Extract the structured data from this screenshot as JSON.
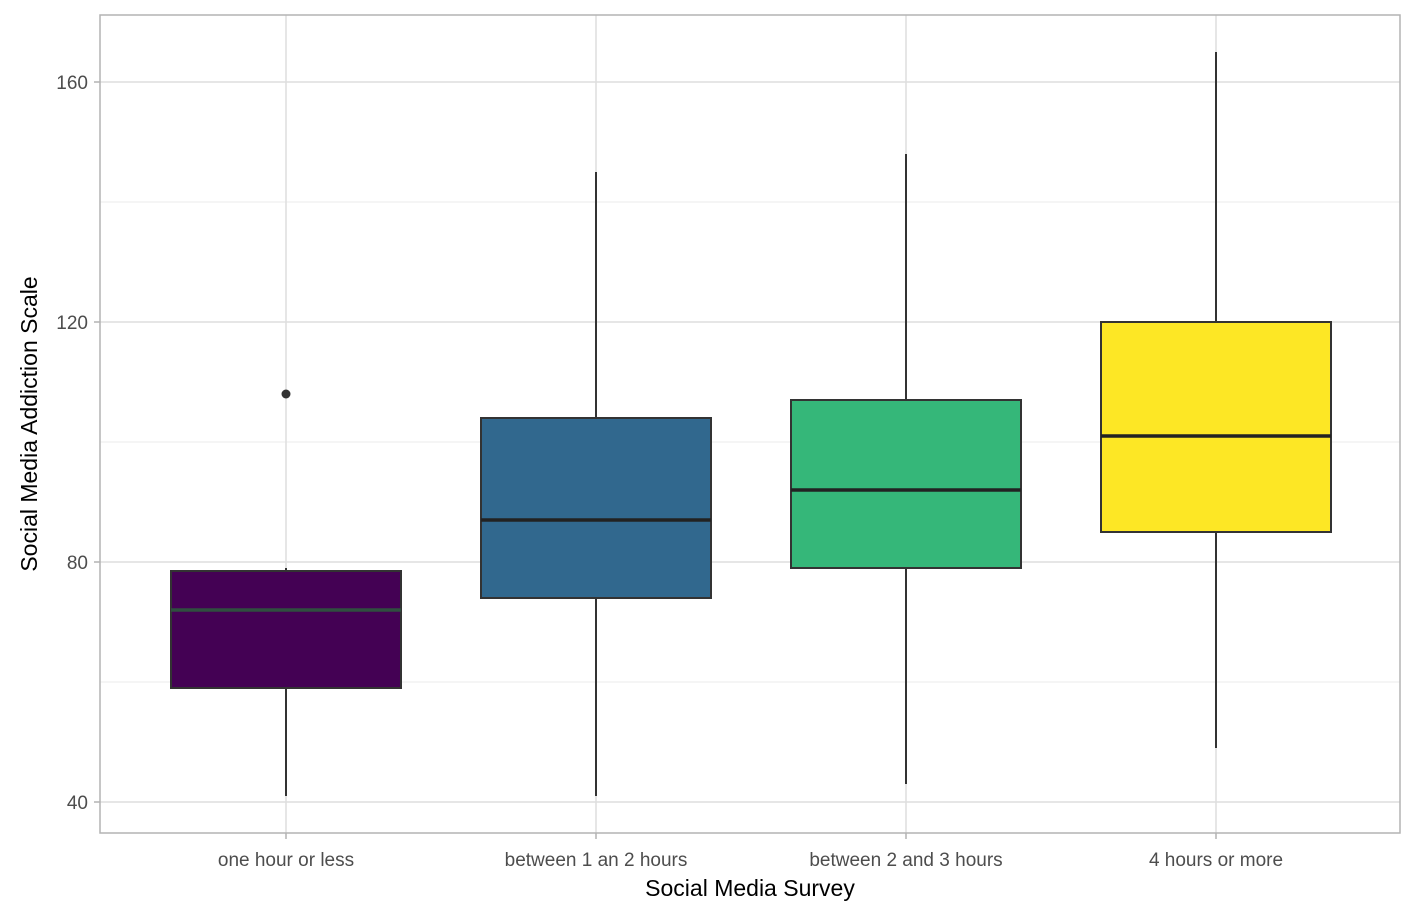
{
  "chart_data": {
    "type": "box",
    "title": "",
    "xlabel": "Social Media Survey",
    "ylabel": "Social Media Addiction Scale",
    "ylim": [
      35,
      172
    ],
    "yticks": [
      40,
      80,
      120,
      160
    ],
    "grid": true,
    "legend": null,
    "categories": [
      "one hour or less",
      "between 1 an 2 hours",
      "between 2 and 3 hours",
      "4 hours or more"
    ],
    "series": [
      {
        "name": "one hour or less",
        "color": "#440154",
        "median_color": "#2f4f3f",
        "whisker_low": 41,
        "q1": 59,
        "median": 72,
        "q3": 78.5,
        "whisker_high": 79,
        "outliers": [
          108
        ]
      },
      {
        "name": "between 1 an 2 hours",
        "color": "#31688E",
        "median_color": "#222222",
        "whisker_low": 41,
        "q1": 74,
        "median": 87,
        "q3": 104,
        "whisker_high": 145,
        "outliers": []
      },
      {
        "name": "between 2 and 3 hours",
        "color": "#35B779",
        "median_color": "#222222",
        "whisker_low": 43,
        "q1": 79,
        "median": 92,
        "q3": 107,
        "whisker_high": 148,
        "outliers": []
      },
      {
        "name": "4 hours or more",
        "color": "#FDE725",
        "median_color": "#222222",
        "whisker_low": 49,
        "q1": 85,
        "median": 101,
        "q3": 120,
        "whisker_high": 165,
        "outliers": []
      }
    ]
  },
  "axes": {
    "x_title": "Social Media Survey",
    "y_title": "Social Media Addiction Scale",
    "y_tick_labels": [
      "40",
      "80",
      "120",
      "160"
    ],
    "x_tick_labels": [
      "one hour or less",
      "between 1 an 2 hours",
      "between 2 and 3 hours",
      "4 hours or more"
    ]
  }
}
